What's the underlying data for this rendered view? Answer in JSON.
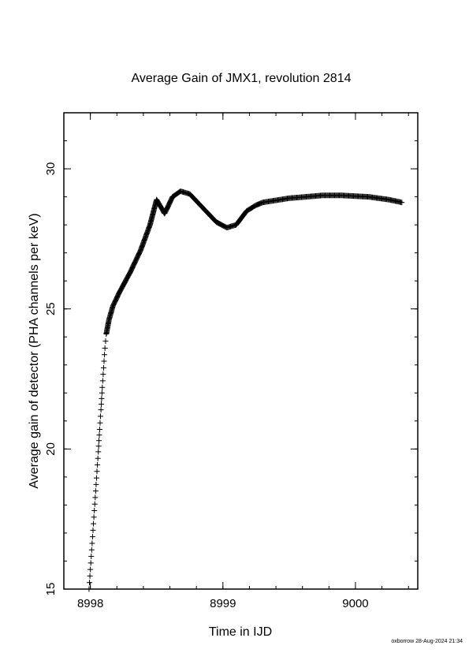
{
  "chart_data": {
    "type": "scatter",
    "marker": "plus",
    "title": "Average Gain of JMX1, revolution 2814",
    "xlabel": "Time in IJD",
    "ylabel": "Average gain of detector (PHA channels per keV)",
    "xlim": [
      8997.8,
      9000.47
    ],
    "ylim": [
      15,
      32
    ],
    "x_ticks": [
      8998,
      8999,
      9000
    ],
    "x_tick_labels": [
      "8998",
      "8999",
      "9000"
    ],
    "y_ticks": [
      15,
      20,
      25,
      30
    ],
    "y_tick_labels": [
      "15",
      "20",
      "25",
      "30"
    ],
    "grid": false,
    "series": [
      {
        "points": [
          [
            8997.99,
            15.0
          ],
          [
            8998.0,
            15.7
          ],
          [
            8998.01,
            16.4
          ],
          [
            8998.02,
            17.1
          ],
          [
            8998.03,
            17.8
          ],
          [
            8998.04,
            18.5
          ],
          [
            8998.05,
            19.2
          ],
          [
            8998.06,
            19.9
          ],
          [
            8998.07,
            20.7
          ],
          [
            8998.08,
            21.4
          ],
          [
            8998.09,
            22.2
          ],
          [
            8998.1,
            22.9
          ],
          [
            8998.11,
            23.6
          ],
          [
            8998.12,
            24.1
          ],
          [
            8998.14,
            24.6
          ],
          [
            8998.17,
            25.1
          ],
          [
            8998.22,
            25.6
          ],
          [
            8998.3,
            26.3
          ],
          [
            8998.38,
            27.1
          ],
          [
            8998.45,
            28.0
          ],
          [
            8998.5,
            28.9
          ],
          [
            8998.56,
            28.4
          ],
          [
            8998.62,
            29.0
          ],
          [
            8998.68,
            29.2
          ],
          [
            8998.75,
            29.1
          ],
          [
            8998.85,
            28.6
          ],
          [
            8998.95,
            28.1
          ],
          [
            8999.03,
            27.9
          ],
          [
            8999.1,
            28.0
          ],
          [
            8999.18,
            28.5
          ],
          [
            8999.25,
            28.7
          ],
          [
            8999.3,
            28.8
          ],
          [
            8999.5,
            28.95
          ],
          [
            8999.75,
            29.05
          ],
          [
            8999.9,
            29.05
          ],
          [
            9000.1,
            29.0
          ],
          [
            9000.25,
            28.9
          ],
          [
            9000.35,
            28.8
          ]
        ]
      }
    ]
  },
  "footer": {
    "stamp": "oxborrow 28-Aug-2024 21:34"
  }
}
